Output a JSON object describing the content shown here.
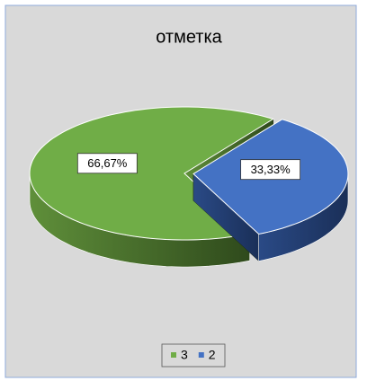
{
  "chart_data": {
    "type": "pie",
    "title": "отметка",
    "categories": [
      "3",
      "2"
    ],
    "values": [
      66.67,
      33.33
    ],
    "value_labels": [
      "66,67%",
      "33,33%"
    ],
    "colors": [
      "#70ad47",
      "#4472c4"
    ],
    "legend": "bottom"
  }
}
